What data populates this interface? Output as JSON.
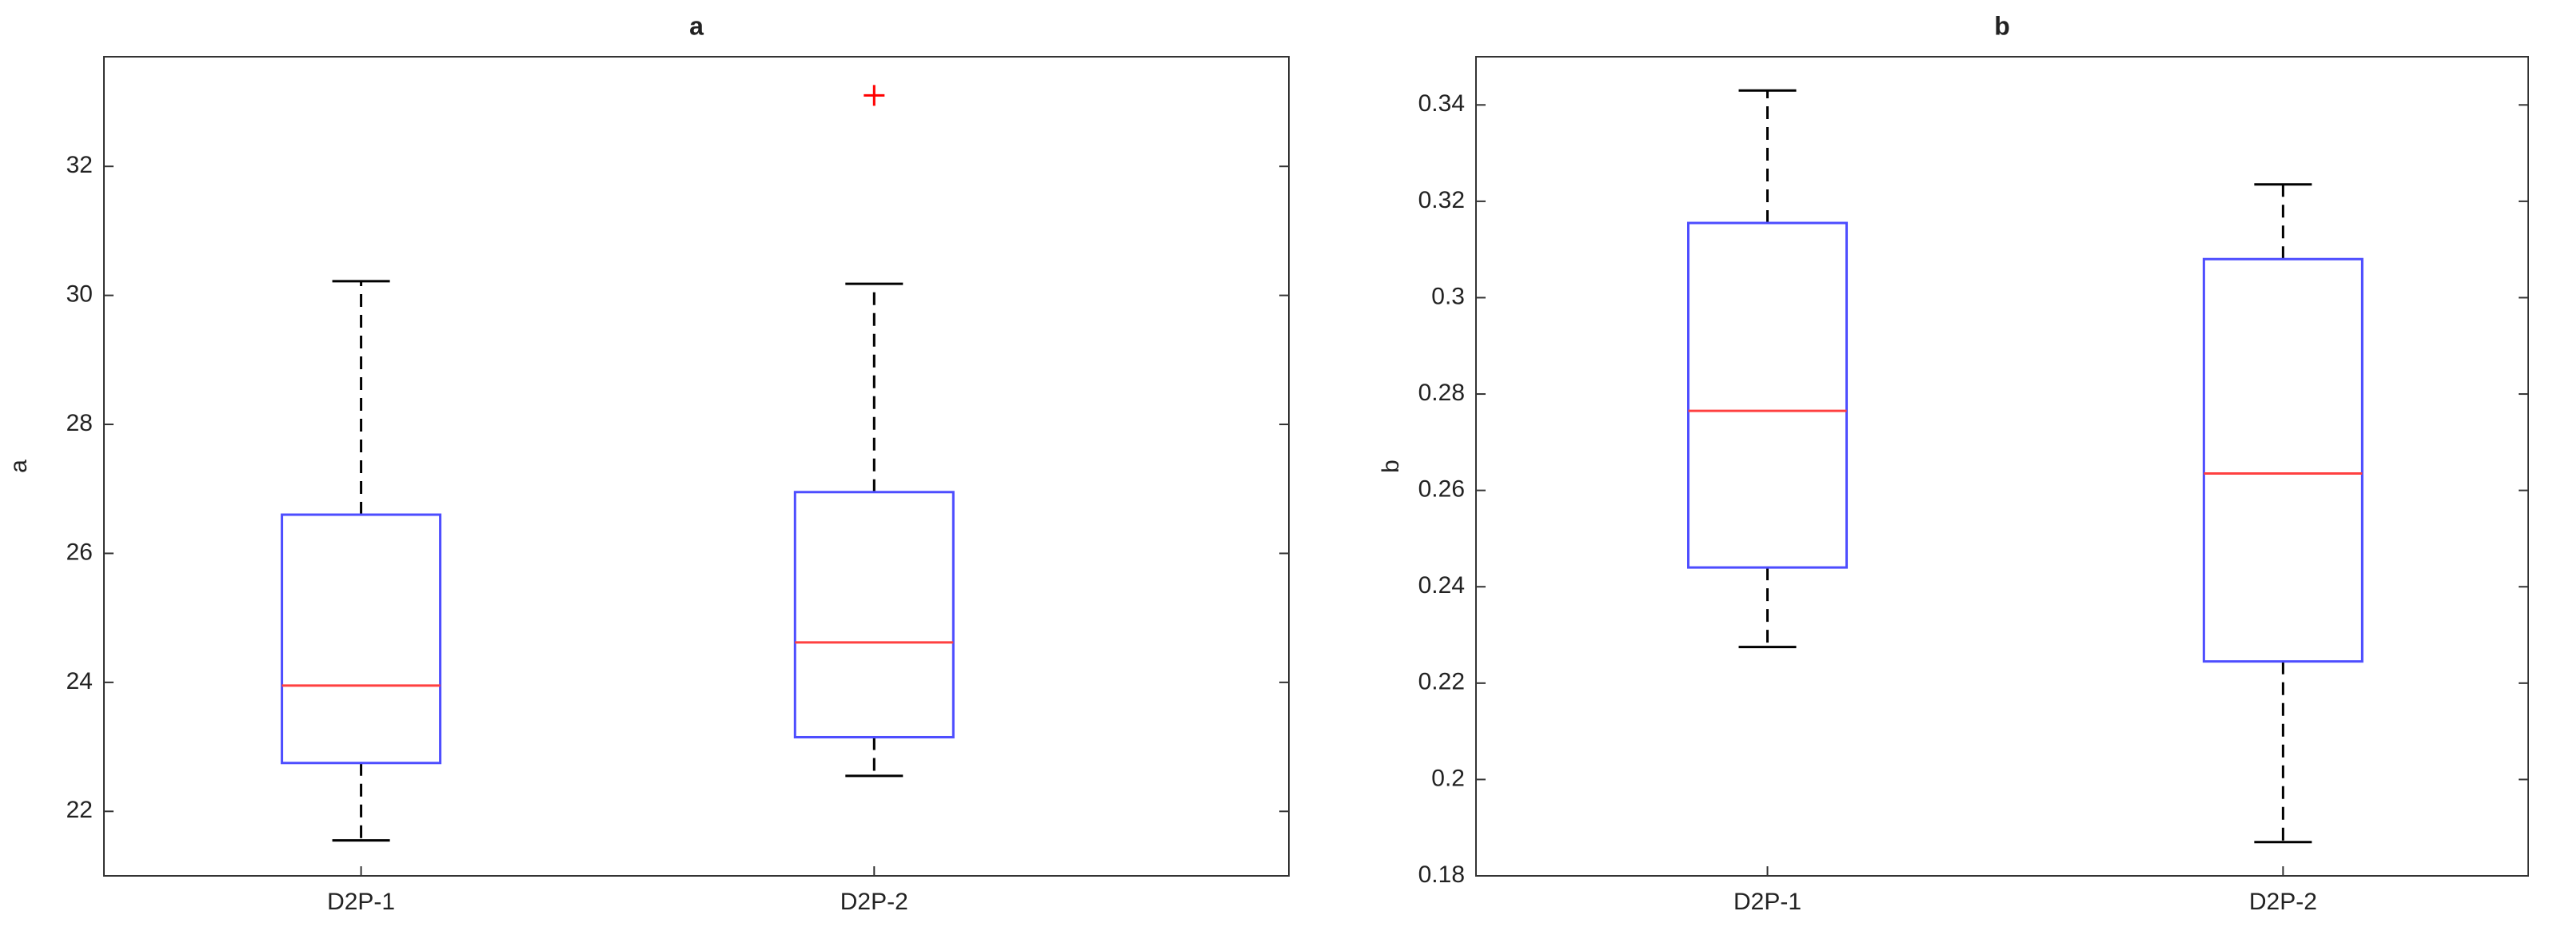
{
  "chart_data": [
    {
      "type": "box",
      "title": "a",
      "ylabel": "a",
      "categories": [
        "D2P-1",
        "D2P-2"
      ],
      "boxes": [
        {
          "min": 21.55,
          "q1": 22.75,
          "median": 23.95,
          "q3": 26.6,
          "max": 30.22,
          "outliers": []
        },
        {
          "min": 22.55,
          "q1": 23.15,
          "median": 24.62,
          "q3": 26.95,
          "max": 30.18,
          "outliers": [
            33.1
          ]
        }
      ],
      "ylim": [
        21,
        33.7
      ],
      "yticks": [
        22,
        24,
        26,
        28,
        30,
        32
      ],
      "box_color": "#4d4dff",
      "median_color": "#ff4040",
      "whisker_color": "#000000",
      "outlier_color": "#ff0000"
    },
    {
      "type": "box",
      "title": "b",
      "ylabel": "b",
      "categories": [
        "D2P-1",
        "D2P-2"
      ],
      "boxes": [
        {
          "min": 0.2275,
          "q1": 0.244,
          "median": 0.2765,
          "q3": 0.3155,
          "max": 0.343,
          "outliers": []
        },
        {
          "min": 0.187,
          "q1": 0.2245,
          "median": 0.2635,
          "q3": 0.308,
          "max": 0.3235,
          "outliers": []
        }
      ],
      "ylim": [
        0.18,
        0.35
      ],
      "yticks": [
        0.18,
        0.2,
        0.22,
        0.24,
        0.26,
        0.28,
        0.3,
        0.32,
        0.34
      ],
      "box_color": "#4d4dff",
      "median_color": "#ff4040",
      "whisker_color": "#000000",
      "outlier_color": "#ff0000"
    }
  ]
}
